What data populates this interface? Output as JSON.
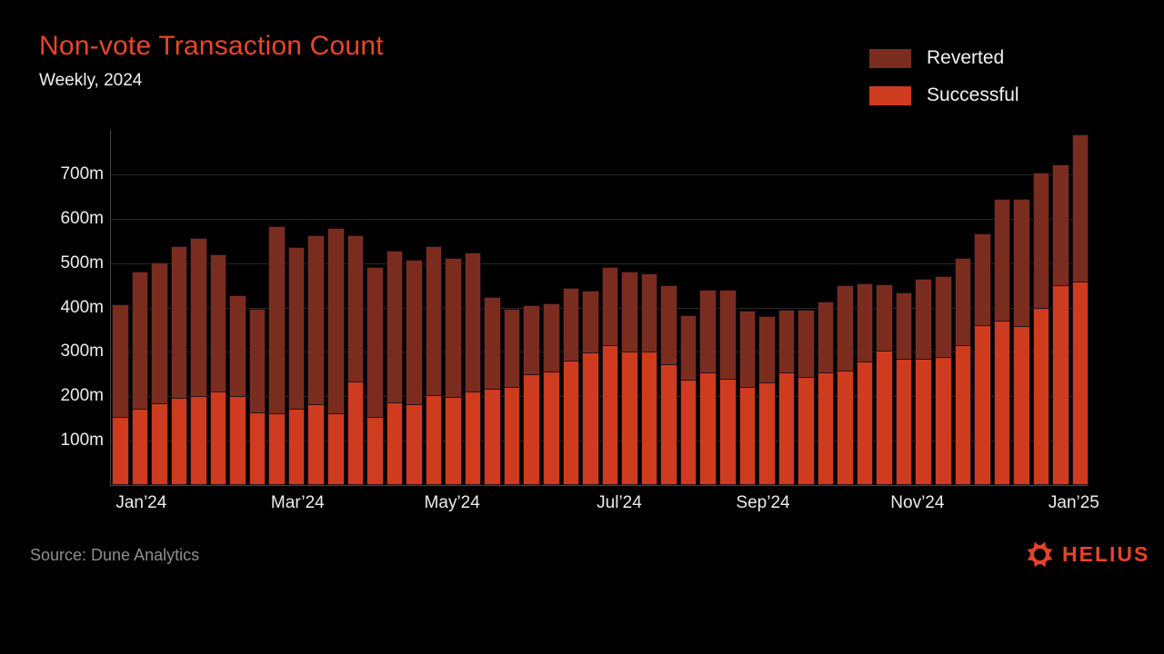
{
  "header": {
    "title": "Non-vote Transaction Count",
    "subtitle": "Weekly, 2024"
  },
  "legend": [
    {
      "label": "Reverted",
      "color": "#7A2D1F"
    },
    {
      "label": "Successful",
      "color": "#CE3B1F"
    }
  ],
  "footer": {
    "source": "Source: Dune Analytics",
    "brand": "HELIUS"
  },
  "colors": {
    "background": "#000000",
    "accent": "#E8462B",
    "successful": "#CE3B1F",
    "reverted": "#7A2D1F",
    "gridline": "#292929",
    "axis": "#454545",
    "tick_text": "#EDEDED",
    "muted_text": "#8F8F8F"
  },
  "chart_data": {
    "type": "bar",
    "stacked": true,
    "title": "Non-vote Transaction Count",
    "subtitle": "Weekly, 2024",
    "xlabel": "",
    "ylabel": "",
    "unit": "millions of transactions",
    "ylim": [
      0,
      800
    ],
    "grid": true,
    "legend_position": "top-right",
    "y_ticks": [
      {
        "value": 100,
        "label": "100m"
      },
      {
        "value": 200,
        "label": "200m"
      },
      {
        "value": 300,
        "label": "300m"
      },
      {
        "value": 400,
        "label": "400m"
      },
      {
        "value": 500,
        "label": "500m"
      },
      {
        "value": 600,
        "label": "600m"
      },
      {
        "value": 700,
        "label": "700m"
      }
    ],
    "x_tick_labels": [
      {
        "label": "Jan’24",
        "position_pct": 3.1
      },
      {
        "label": "Mar’24",
        "position_pct": 19.1
      },
      {
        "label": "May’24",
        "position_pct": 34.9
      },
      {
        "label": "Jul’24",
        "position_pct": 52.0
      },
      {
        "label": "Sep’24",
        "position_pct": 66.7
      },
      {
        "label": "Nov’24",
        "position_pct": 82.5
      },
      {
        "label": "Jan’25",
        "position_pct": 98.5
      }
    ],
    "weeks": 50,
    "series": [
      {
        "name": "Successful",
        "color": "#CE3B1F",
        "values": [
          153,
          171,
          184,
          196,
          200,
          211,
          200,
          164,
          161,
          171,
          182,
          161,
          233,
          153,
          186,
          182,
          202,
          198,
          210,
          216,
          220,
          250,
          256,
          281,
          299,
          316,
          301,
          300,
          272,
          238,
          254,
          240,
          220,
          231,
          253,
          243,
          253,
          258,
          279,
          302,
          284,
          284,
          288,
          316,
          361,
          371,
          359,
          400,
          451,
          459
        ]
      },
      {
        "name": "Reverted",
        "color": "#7A2D1F",
        "values": [
          255,
          309,
          318,
          343,
          356,
          308,
          227,
          232,
          423,
          366,
          380,
          419,
          330,
          339,
          341,
          326,
          337,
          314,
          313,
          208,
          176,
          156,
          154,
          164,
          138,
          176,
          179,
          177,
          178,
          144,
          186,
          200,
          172,
          150,
          142,
          152,
          160,
          192,
          176,
          151,
          149,
          181,
          183,
          196,
          206,
          274,
          286,
          304,
          271,
          331
        ]
      }
    ]
  }
}
